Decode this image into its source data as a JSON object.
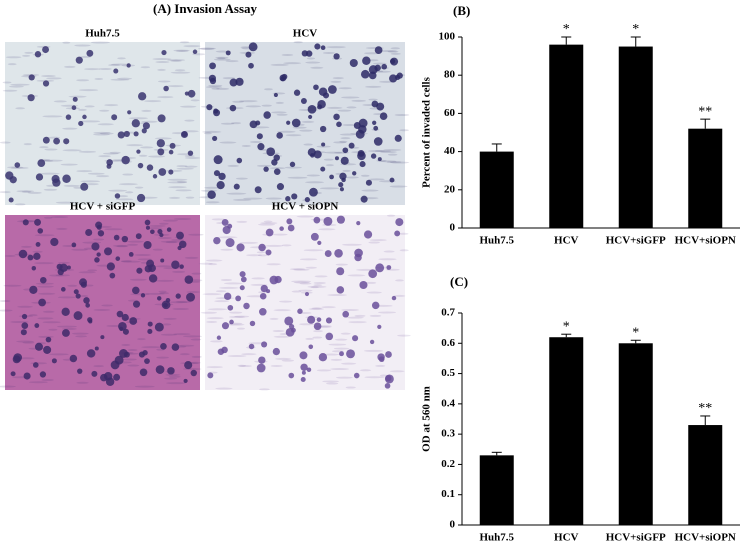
{
  "panel_a": {
    "title": "(A) Invasion Assay",
    "images": [
      "Huh7.5",
      "HCV",
      "HCV + siGFP",
      "HCV + siOPN"
    ]
  },
  "chart_data": [
    {
      "type": "bar",
      "title": "(B)",
      "y_label": "Percent of invaded cells",
      "categories": [
        "Huh7.5",
        "HCV",
        "HCV+siGFP",
        "HCV+siOPN"
      ],
      "values": [
        40,
        96,
        95,
        52
      ],
      "errors": [
        4,
        4,
        5,
        5
      ],
      "annotations": [
        null,
        "*",
        "*",
        "**"
      ],
      "color": "#000000",
      "ylim": [
        0,
        100
      ],
      "yticks": [
        0,
        20,
        40,
        60,
        80,
        100
      ]
    },
    {
      "type": "bar",
      "title": "(C)",
      "y_label": "OD at 560 nm",
      "categories": [
        "Huh7.5",
        "HCV",
        "HCV+siGFP",
        "HCV+siOPN"
      ],
      "values": [
        0.23,
        0.62,
        0.6,
        0.33
      ],
      "errors": [
        0.01,
        0.01,
        0.01,
        0.03
      ],
      "annotations": [
        null,
        "*",
        "*",
        "**"
      ],
      "color": "#000000",
      "ylim": [
        0,
        0.7
      ],
      "yticks": [
        0,
        0.1,
        0.2,
        0.3,
        0.4,
        0.5,
        0.6,
        0.7
      ]
    }
  ]
}
